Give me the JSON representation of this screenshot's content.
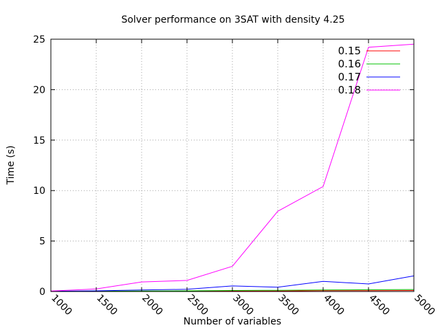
{
  "chart_data": {
    "type": "line",
    "title": "Solver performance on 3SAT with density 4.25",
    "xlabel": "Number of variables",
    "ylabel": "Time (s)",
    "x": [
      1000,
      1500,
      2000,
      2500,
      3000,
      3500,
      4000,
      4500,
      5000
    ],
    "xlim": [
      1000,
      5000
    ],
    "ylim": [
      0,
      25
    ],
    "xticks": [
      "1000",
      "1500",
      "2000",
      "2500",
      "3000",
      "3500",
      "4000",
      "4500",
      "5000"
    ],
    "yticks": [
      "0",
      "5",
      "10",
      "15",
      "20",
      "25"
    ],
    "grid": true,
    "legend_position": "top-right",
    "series": [
      {
        "name": "0.15",
        "color": "#ff0000",
        "values": [
          0.01,
          0.01,
          0.02,
          0.03,
          0.05,
          0.05,
          0.08,
          0.08,
          0.1
        ]
      },
      {
        "name": "0.16",
        "color": "#00c000",
        "values": [
          0.02,
          0.03,
          0.05,
          0.07,
          0.1,
          0.12,
          0.15,
          0.18,
          0.2
        ]
      },
      {
        "name": "0.17",
        "color": "#0000ff",
        "values": [
          0.03,
          0.07,
          0.15,
          0.22,
          0.55,
          0.42,
          1.0,
          0.75,
          1.55
        ]
      },
      {
        "name": "0.18",
        "color": "#ff00ff",
        "values": [
          0.05,
          0.25,
          0.95,
          1.1,
          2.5,
          7.95,
          10.4,
          24.2,
          24.5
        ]
      }
    ]
  }
}
